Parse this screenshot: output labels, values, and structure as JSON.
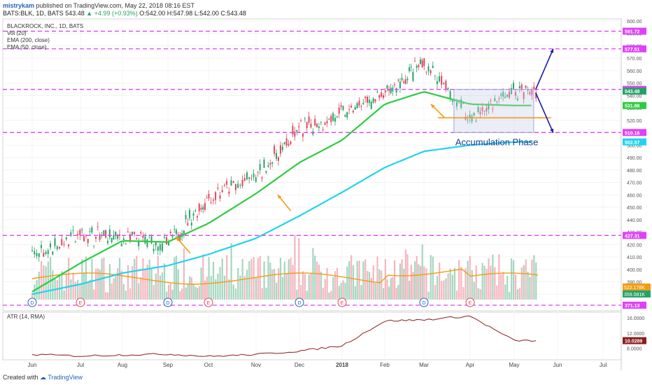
{
  "header": {
    "user": "mistrykam",
    "published": "published on TradingView.com, May 22, 2018 08:16 EST",
    "symbol": "BATS:BLK, 1D, BATS",
    "last": "543.48",
    "change": "▲ +4.99 (+0.93%)",
    "o": "O:542.00",
    "h": "H:547.98",
    "l": "L:542.00",
    "c": "C:543.48"
  },
  "legend": {
    "title": "BLACKROCK, INC., 1D, BATS",
    "vol": "Vol (20)",
    "ema200": "EMA (200, close)",
    "ema50": "EMA (50, close)",
    "atr": "ATR (14, RMA)"
  },
  "annotation": "Accumulation Phase",
  "footer": {
    "created": "Created with",
    "brand": "TradingView"
  },
  "colors": {
    "magenta": "#e040fb",
    "ema50": "#2ecc40",
    "ema200": "#22d3ee",
    "orange": "#f39c12",
    "navy": "#1a1aa8",
    "up": "#26a269",
    "down": "#e0455a",
    "atr": "#8b1c1c",
    "box": "#9fa8da"
  },
  "chart_data": [
    {
      "type": "candlestick",
      "title": "BLACKROCK, INC., 1D, BATS",
      "ylim": [
        370,
        605
      ],
      "y_ticks": [
        380,
        390,
        400,
        410,
        420,
        430,
        440,
        450,
        460,
        470,
        480,
        490,
        500,
        510,
        520,
        530,
        540,
        550,
        560,
        570,
        580,
        590,
        600
      ],
      "x_ticks": [
        "Jun",
        "Jul",
        "Aug",
        "Sep",
        "Oct",
        "Nov",
        "Dec",
        "2018",
        "Feb",
        "Mar",
        "Apr",
        "May",
        "Jun",
        "Jul"
      ],
      "series": [
        {
          "name": "BLK price (close)",
          "dates": [
            "Jun",
            "Jul",
            "Aug",
            "Sep",
            "Oct",
            "Nov",
            "Dec",
            "2018",
            "Feb",
            "Mar",
            "Apr",
            "May"
          ],
          "values": [
            412,
            428,
            425,
            420,
            458,
            474,
            513,
            525,
            540,
            566,
            522,
            543.48
          ]
        },
        {
          "name": "EMA (50, close)",
          "dates": [
            "Jun",
            "Jul",
            "Aug",
            "Sep",
            "Oct",
            "Nov",
            "Dec",
            "2018",
            "Feb",
            "Mar",
            "Apr",
            "May"
          ],
          "values": [
            382,
            405,
            423,
            422,
            437,
            461,
            486,
            504,
            533,
            543,
            533,
            531.88
          ]
        },
        {
          "name": "EMA (200, close)",
          "dates": [
            "Jun",
            "Jul",
            "Aug",
            "Sep",
            "Oct",
            "Nov",
            "Dec",
            "2018",
            "Feb",
            "Mar",
            "Apr",
            "May"
          ],
          "values": [
            380,
            388,
            397,
            403,
            412,
            425,
            443,
            462,
            482,
            495,
            500,
            502.57
          ]
        }
      ],
      "levels": [
        591.72,
        577.51,
        544.89,
        510.16,
        427.31,
        371.13
      ],
      "price_labels": [
        "591.72",
        "577.51",
        "544.89",
        "543.48",
        "531.88",
        "510.16",
        "502.57",
        "427.31",
        "371.13"
      ],
      "volume_labels": [
        "522.178K",
        "359.081K"
      ],
      "events": [
        {
          "label": "D",
          "date": "Jun"
        },
        {
          "label": "E",
          "date": "Jul"
        },
        {
          "label": "D",
          "date": "Sep"
        },
        {
          "label": "E",
          "date": "Oct"
        },
        {
          "label": "D",
          "date": "Dec"
        },
        {
          "label": "E",
          "date": "Jan"
        },
        {
          "label": "D",
          "date": "Mar"
        },
        {
          "label": "E",
          "date": "Apr"
        }
      ],
      "annotations": [
        "Accumulation Phase"
      ]
    },
    {
      "type": "line",
      "title": "ATR (14, RMA)",
      "ylim": [
        5,
        17.5
      ],
      "y_ticks": [
        8.0,
        12.0,
        16.0
      ],
      "tick_labels": [
        "8.0000",
        "12.0000",
        "16.0000"
      ],
      "last_value_label": "10.0289",
      "series": [
        {
          "name": "ATR (14, RMA)",
          "dates": [
            "Jun",
            "Jul",
            "Aug",
            "Sep",
            "Oct",
            "Nov",
            "Dec",
            "2018",
            "Feb",
            "Mar",
            "Apr",
            "May"
          ],
          "values": [
            6.4,
            6.0,
            6.3,
            6.5,
            5.9,
            6.4,
            7.3,
            8.7,
            15.2,
            15.5,
            16.5,
            10.03
          ]
        }
      ]
    }
  ]
}
